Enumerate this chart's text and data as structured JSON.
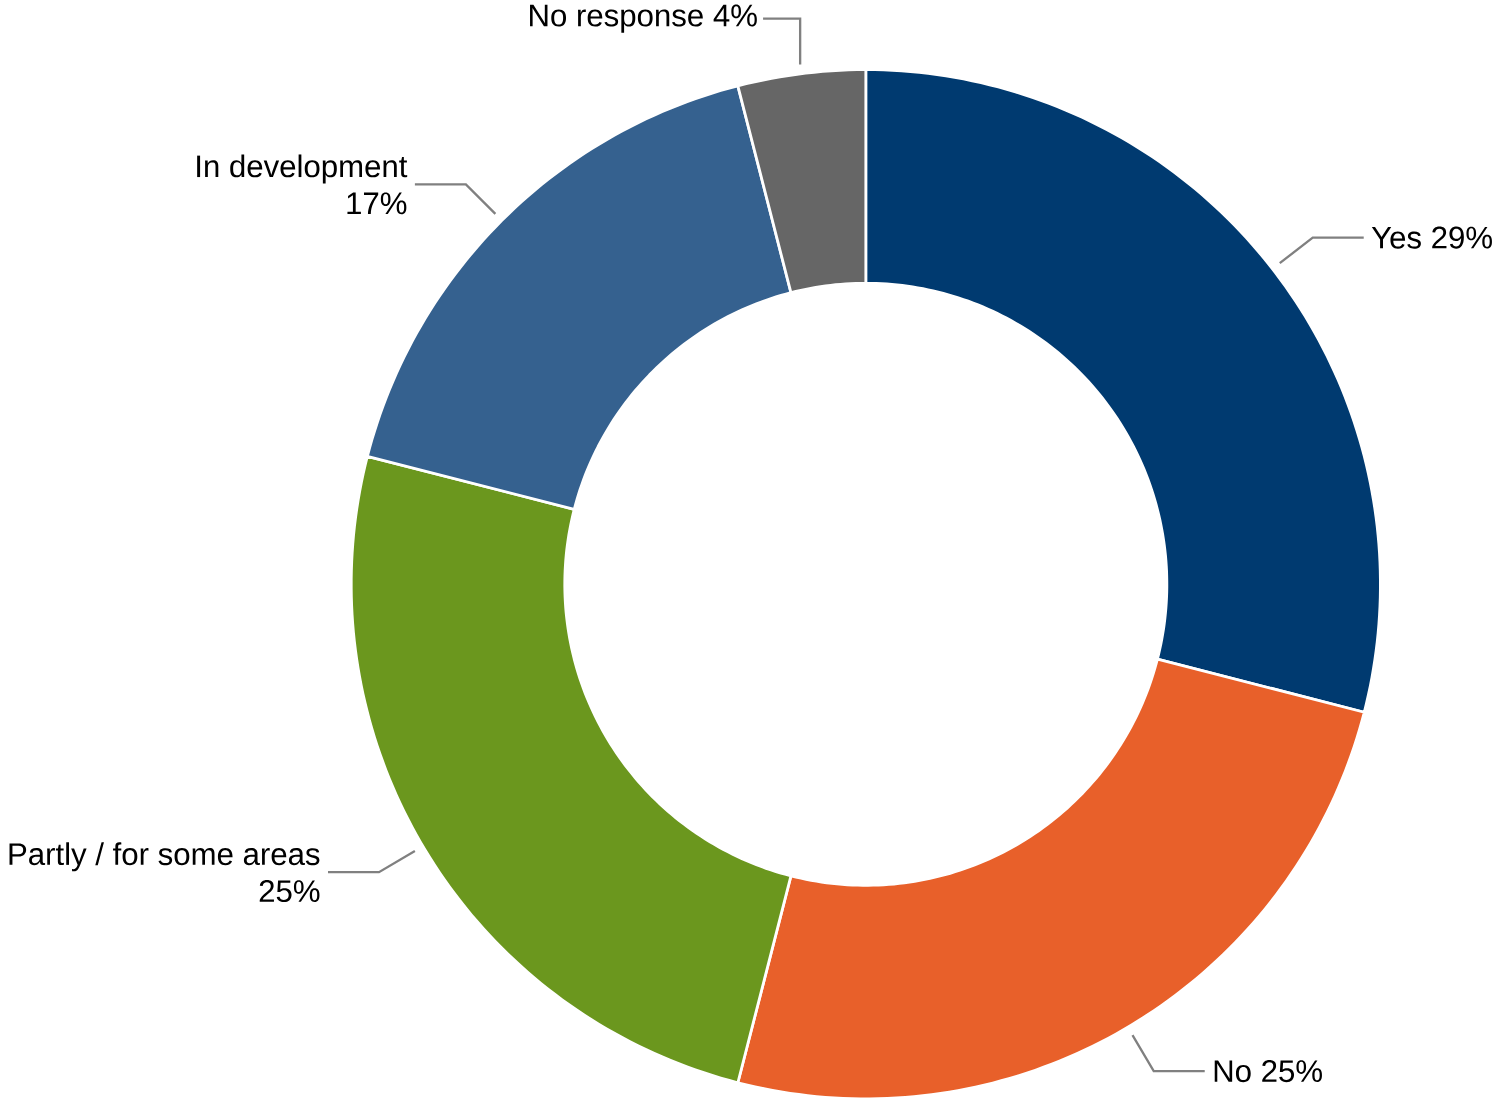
{
  "chart_data": {
    "type": "donut",
    "categories": [
      "Yes",
      "No",
      "Partly / for some areas",
      "In development",
      "No response"
    ],
    "values": [
      29,
      25,
      25,
      17,
      4
    ],
    "value_labels": [
      "29%",
      "25%",
      "25%",
      "17%",
      "4%"
    ],
    "colors": [
      "#003a70",
      "#e8602a",
      "#6b971e",
      "#35618f",
      "#666666"
    ]
  }
}
